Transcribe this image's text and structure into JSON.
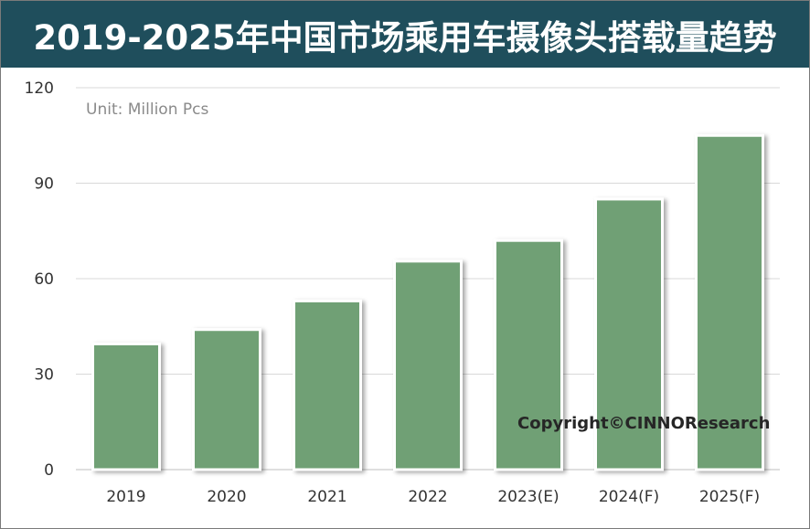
{
  "title": "2019-2025年中国市场乘用车摄像头搭载量趋势",
  "unit_label": "Unit: Million Pcs",
  "copyright": "Copyright©CINNOResearch",
  "colors": {
    "title_bg": "#1f4e5c",
    "bar_fill": "#6fa074",
    "bar_stroke": "#ffffff",
    "grid": "#d9d9d9"
  },
  "chart_data": {
    "type": "bar",
    "categories": [
      "2019",
      "2020",
      "2021",
      "2022",
      "2023(E)",
      "2024(F)",
      "2025(F)"
    ],
    "values": [
      39.5,
      44,
      53,
      65.5,
      72,
      85,
      105
    ],
    "title": "2019-2025年中国市场乘用车摄像头搭载量趋势",
    "ylim": [
      0,
      120
    ],
    "yticks": [
      0,
      30,
      60,
      90,
      120
    ],
    "grid": true,
    "legend": false
  }
}
